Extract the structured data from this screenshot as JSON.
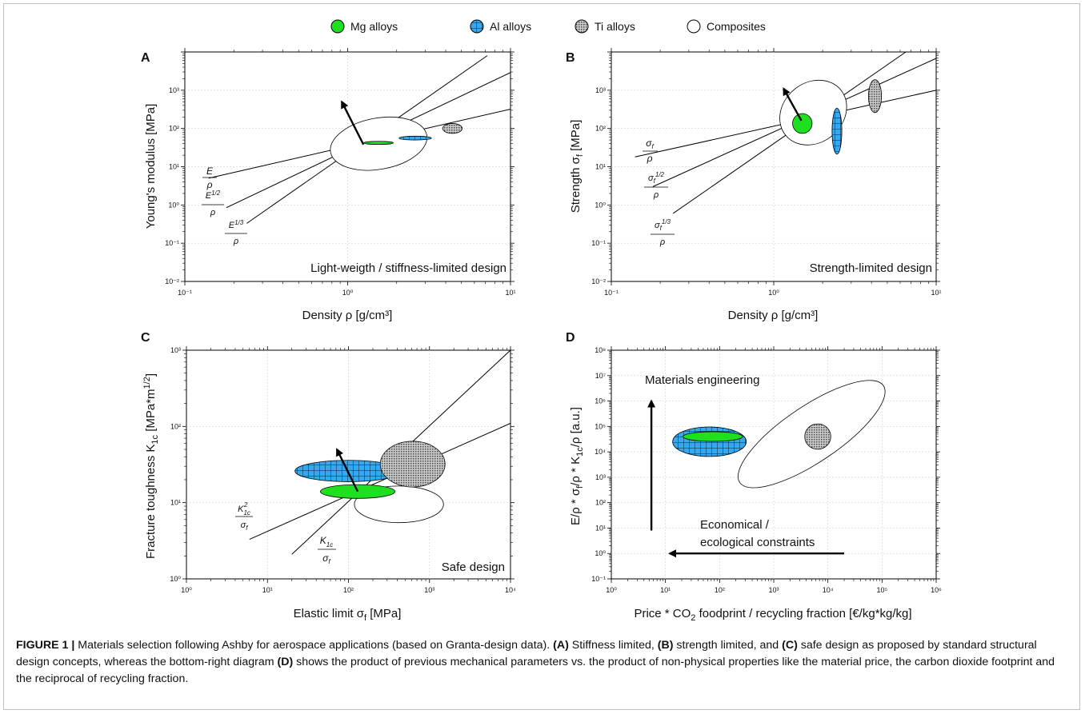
{
  "legend": [
    {
      "label": "Mg alloys",
      "color": "#1fe01f",
      "pattern": "solid"
    },
    {
      "label": "Al alloys",
      "color": "#34a8f0",
      "pattern": "grid"
    },
    {
      "label": "Ti alloys",
      "color": "#9a9a9a",
      "pattern": "dots"
    },
    {
      "label": "Composites",
      "color": "#ffffff",
      "pattern": "outline"
    }
  ],
  "caption": {
    "figure_label": "FIGURE 1 |",
    "text_1": " Materials selection following Ashby for aerospace applications (based on Granta-design data). ",
    "ref_a": "(A)",
    "text_2": " Stiffness limited, ",
    "ref_b": "(B)",
    "text_3": " strength limited, and ",
    "ref_c": "(C)",
    "text_4": " safe design as proposed by standard structural design concepts, whereas the bottom-right diagram ",
    "ref_d": "(D)",
    "text_5": " shows the product of previous mechanical parameters vs. the product of non-physical properties like the material price, the carbon dioxide footprint and the reciprocal of recycling fraction."
  },
  "chart_data": [
    {
      "type": "scatter",
      "panel": "A",
      "xlabel": "Density ρ [g/cm³]",
      "ylabel": "Young's modulus [MPa]",
      "xscale": "log",
      "yscale": "log",
      "xlim": [
        0.1,
        10
      ],
      "ylim": [
        0.01,
        10000
      ],
      "xticks": [
        "10⁻¹",
        "10⁰",
        "10¹"
      ],
      "yticks": [
        "10⁻²",
        "10⁻¹",
        "10⁰",
        "10¹",
        "10²",
        "10³"
      ],
      "annotation": "Light-weigth / stiffness-limited design",
      "guide_lines": [
        {
          "label": "E/ρ",
          "x": [
            0.14,
            10
          ],
          "y": [
            5,
            320
          ]
        },
        {
          "label": "E^{1/2}/ρ",
          "x": [
            0.18,
            10
          ],
          "y": [
            0.85,
            2900
          ]
        },
        {
          "label": "E^{1/3}/ρ",
          "x": [
            0.24,
            7.2
          ],
          "y": [
            0.33,
            8000
          ]
        }
      ],
      "regions": [
        {
          "material": "Composites",
          "x": 1.55,
          "y": 40,
          "dx": 0.3,
          "dy": 0.67,
          "rot": -10
        },
        {
          "material": "Mg alloys",
          "x": 1.55,
          "y": 42,
          "dx": 0.09,
          "dy": 0.04,
          "rot": 0
        },
        {
          "material": "Al alloys",
          "x": 2.6,
          "y": 56,
          "dx": 0.1,
          "dy": 0.05,
          "rot": 0
        },
        {
          "material": "Ti alloys",
          "x": 4.4,
          "y": 100,
          "dx": 0.06,
          "dy": 0.13,
          "rot": 0
        }
      ],
      "arrow": {
        "x": [
          1.25,
          0.92
        ],
        "y": [
          38,
          500
        ]
      }
    },
    {
      "type": "scatter",
      "panel": "B",
      "xlabel": "Density ρ [g/cm³]",
      "ylabel": "Strength σ_f [MPa]",
      "xscale": "log",
      "yscale": "log",
      "xlim": [
        0.1,
        10
      ],
      "ylim": [
        0.01,
        10000
      ],
      "xticks": [
        "10⁻¹",
        "10⁰",
        "10¹"
      ],
      "yticks": [
        "10⁻²",
        "10⁻¹",
        "10⁰",
        "10¹",
        "10²",
        "10³"
      ],
      "annotation": "Strength-limited design",
      "guide_lines": [
        {
          "label": "σ_f/ρ",
          "x": [
            0.14,
            10
          ],
          "y": [
            18,
            1000
          ]
        },
        {
          "label": "σ_f^{1/2}/ρ",
          "x": [
            0.18,
            10
          ],
          "y": [
            3,
            6800
          ]
        },
        {
          "label": "σ_f^{1/3}/ρ",
          "x": [
            0.24,
            6.5
          ],
          "y": [
            0.6,
            10000
          ]
        }
      ],
      "regions": [
        {
          "material": "Composites",
          "x": 1.75,
          "y": 260,
          "dx": 0.22,
          "dy": 0.78,
          "rot": -40
        },
        {
          "material": "Mg alloys",
          "x": 1.5,
          "y": 135,
          "dx": 0.06,
          "dy": 0.26,
          "rot": 0
        },
        {
          "material": "Al alloys",
          "x": 2.45,
          "y": 85,
          "dx": 0.03,
          "dy": 0.6,
          "rot": 0
        },
        {
          "material": "Ti alloys",
          "x": 4.2,
          "y": 700,
          "dx": 0.04,
          "dy": 0.43,
          "rot": 0
        }
      ],
      "arrow": {
        "x": [
          1.48,
          1.15
        ],
        "y": [
          160,
          1100
        ]
      }
    },
    {
      "type": "scatter",
      "panel": "C",
      "xlabel": "Elastic limit σ_f [MPa]",
      "ylabel": "Fracture toughness K_1c [MPa*m^1/2]",
      "xscale": "log",
      "yscale": "log",
      "xlim": [
        1,
        10000
      ],
      "ylim": [
        1,
        1000
      ],
      "xticks": [
        "10⁰",
        "10¹",
        "10²",
        "10³",
        "10⁴"
      ],
      "yticks": [
        "10⁰",
        "10¹",
        "10²",
        "10³"
      ],
      "annotation": "Safe design",
      "guide_lines": [
        {
          "label": "K_1c²/σ_f",
          "x": [
            6,
            10000
          ],
          "y": [
            3.3,
            110
          ]
        },
        {
          "label": "K_1c/σ_f",
          "x": [
            20,
            10000
          ],
          "y": [
            2.1,
            1000
          ]
        }
      ],
      "regions": [
        {
          "material": "Composites",
          "x": 420,
          "y": 9.5,
          "dx": 0.55,
          "dy": 0.24,
          "rot": 0
        },
        {
          "material": "Al alloys",
          "x": 100,
          "y": 26,
          "dx": 0.66,
          "dy": 0.14,
          "rot": 0
        },
        {
          "material": "Mg alloys",
          "x": 130,
          "y": 14,
          "dx": 0.46,
          "dy": 0.09,
          "rot": 0
        },
        {
          "material": "Ti alloys",
          "x": 620,
          "y": 32,
          "dx": 0.4,
          "dy": 0.3,
          "rot": 0
        }
      ],
      "arrow": {
        "x": [
          130,
          72
        ],
        "y": [
          14,
          50
        ]
      }
    },
    {
      "type": "scatter",
      "panel": "D",
      "xlabel": "Price * CO₂ foodprint / recycling fraction [€/kg*kg/kg]",
      "ylabel": "E/ρ * σ_f/ρ * K_1c/ρ [a.u.]",
      "xscale": "log",
      "yscale": "log",
      "xlim": [
        1,
        1000000
      ],
      "ylim": [
        0.1,
        100000000
      ],
      "xticks": [
        "10⁰",
        "10¹",
        "10²",
        "10³",
        "10⁴",
        "10⁵",
        "10⁶"
      ],
      "yticks": [
        "10⁻¹",
        "10⁰",
        "10¹",
        "10²",
        "10³",
        "10⁴",
        "10⁵",
        "10⁶",
        "10⁷",
        "10⁸"
      ],
      "annotations": [
        "Materials engineering",
        "Economical /",
        "ecological constraints"
      ],
      "regions": [
        {
          "material": "Composites",
          "x": 5000,
          "y": 50000,
          "dx": 1.6,
          "dy": 1.1,
          "rot": -34
        },
        {
          "material": "Al alloys",
          "x": 65,
          "y": 25000,
          "dx": 0.68,
          "dy": 0.58,
          "rot": 0
        },
        {
          "material": "Mg alloys",
          "x": 75,
          "y": 40000,
          "dx": 0.55,
          "dy": 0.19,
          "rot": 0
        },
        {
          "material": "Ti alloys",
          "x": 6500,
          "y": 40000,
          "dx": 0.24,
          "dy": 0.5,
          "rot": 0
        }
      ],
      "arrows": [
        {
          "name": "materials-engineering",
          "x": [
            5.5,
            5.5
          ],
          "y": [
            8,
            1000000
          ]
        },
        {
          "name": "economical-constraints",
          "x": [
            20000,
            12
          ],
          "y": [
            1,
            1
          ]
        }
      ]
    }
  ]
}
